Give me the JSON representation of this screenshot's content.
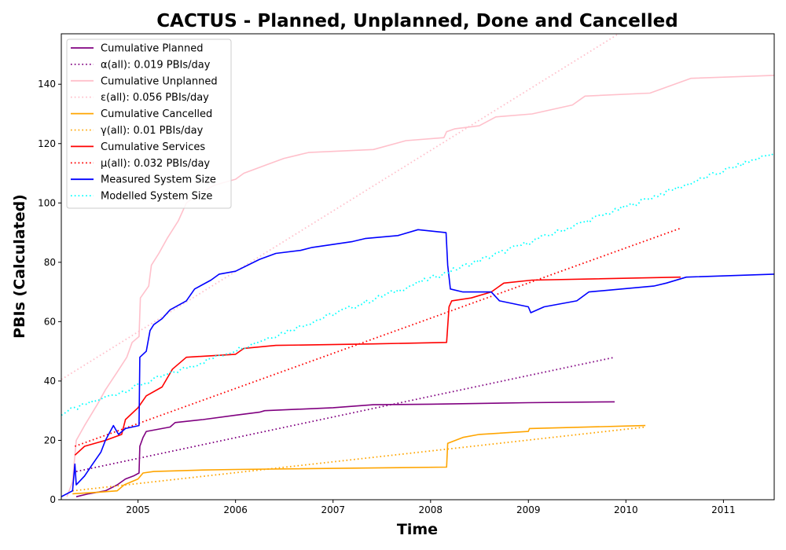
{
  "chart_data": {
    "type": "line",
    "title": "CACTUS - Planned, Unplanned, Done  and Cancelled",
    "xlabel": "Time",
    "ylabel": "PBIs (Calculated)",
    "xlim": [
      "2004-03-20",
      "2011-07-10"
    ],
    "ylim": [
      0,
      157
    ],
    "x_ticks": [
      "2005",
      "2006",
      "2007",
      "2008",
      "2009",
      "2010",
      "2011"
    ],
    "y_ticks": [
      0,
      20,
      40,
      60,
      80,
      100,
      120,
      140
    ],
    "grid": false,
    "legend_position": "upper-left",
    "series": [
      {
        "name": "Cumulative Planned",
        "color": "#800080",
        "style": "solid",
        "points": [
          [
            "2004-05-15",
            1
          ],
          [
            "2004-07-01",
            2
          ],
          [
            "2004-09-01",
            3
          ],
          [
            "2004-10-15",
            5
          ],
          [
            "2004-11-15",
            7
          ],
          [
            "2004-12-15",
            8
          ],
          [
            "2005-01-05",
            9
          ],
          [
            "2005-01-08",
            18
          ],
          [
            "2005-01-20",
            21
          ],
          [
            "2005-02-01",
            23
          ],
          [
            "2005-04-01",
            24
          ],
          [
            "2005-05-01",
            24.5
          ],
          [
            "2005-05-20",
            26
          ],
          [
            "2005-09-01",
            27
          ],
          [
            "2006-01-01",
            28.5
          ],
          [
            "2006-04-01",
            29.5
          ],
          [
            "2006-04-20",
            30
          ],
          [
            "2007-01-01",
            31
          ],
          [
            "2007-06-01",
            32
          ],
          [
            "2008-01-01",
            32.2
          ],
          [
            "2009-01-01",
            32.7
          ],
          [
            "2009-11-20",
            33
          ]
        ]
      },
      {
        "name": "α(all): 0.019 PBIs/day",
        "color": "#800080",
        "style": "dotted",
        "points": [
          [
            "2004-05-15",
            9.5
          ],
          [
            "2009-11-20",
            48
          ]
        ]
      },
      {
        "name": "Cumulative Unplanned",
        "color": "#ffc0cb",
        "style": "solid",
        "points": [
          [
            "2004-04-10",
            1
          ],
          [
            "2004-05-01",
            6
          ],
          [
            "2004-05-15",
            20
          ],
          [
            "2004-06-15",
            25
          ],
          [
            "2004-08-01",
            32
          ],
          [
            "2004-09-01",
            37
          ],
          [
            "2004-10-15",
            43
          ],
          [
            "2004-11-20",
            48
          ],
          [
            "2004-12-10",
            53
          ],
          [
            "2005-01-05",
            55
          ],
          [
            "2005-01-10",
            68
          ],
          [
            "2005-02-10",
            72
          ],
          [
            "2005-02-20",
            79
          ],
          [
            "2005-03-20",
            83
          ],
          [
            "2005-04-20",
            88
          ],
          [
            "2005-06-01",
            94
          ],
          [
            "2005-07-01",
            100
          ],
          [
            "2005-08-15",
            103
          ],
          [
            "2005-10-15",
            106
          ],
          [
            "2006-01-01",
            108
          ],
          [
            "2006-02-01",
            110
          ],
          [
            "2006-05-01",
            113
          ],
          [
            "2006-07-01",
            115
          ],
          [
            "2006-10-01",
            117
          ],
          [
            "2007-06-01",
            118
          ],
          [
            "2007-10-01",
            121
          ],
          [
            "2008-02-20",
            122
          ],
          [
            "2008-03-01",
            124
          ],
          [
            "2008-04-01",
            125
          ],
          [
            "2008-07-01",
            126
          ],
          [
            "2008-09-01",
            129
          ],
          [
            "2009-01-15",
            130
          ],
          [
            "2009-06-15",
            133
          ],
          [
            "2009-08-01",
            136
          ],
          [
            "2010-04-01",
            137
          ],
          [
            "2010-06-01",
            139
          ],
          [
            "2010-09-01",
            142
          ],
          [
            "2011-07-10",
            143
          ]
        ]
      },
      {
        "name": "ε(all): 0.056 PBIs/day",
        "color": "#ffc0cb",
        "style": "dotted",
        "points": [
          [
            "2004-03-20",
            40.5
          ],
          [
            "2009-12-05",
            157
          ]
        ]
      },
      {
        "name": "Cumulative Cancelled",
        "color": "#ffa500",
        "style": "solid",
        "points": [
          [
            "2004-05-01",
            2
          ],
          [
            "2004-08-01",
            2.5
          ],
          [
            "2004-10-15",
            3
          ],
          [
            "2004-11-10",
            5
          ],
          [
            "2005-01-01",
            7
          ],
          [
            "2005-01-20",
            9
          ],
          [
            "2005-03-01",
            9.5
          ],
          [
            "2005-09-01",
            10
          ],
          [
            "2006-01-01",
            10.2
          ],
          [
            "2008-03-01",
            11
          ],
          [
            "2008-03-05",
            19
          ],
          [
            "2008-05-01",
            21
          ],
          [
            "2008-07-01",
            22
          ],
          [
            "2009-01-01",
            23
          ],
          [
            "2009-01-05",
            24
          ],
          [
            "2010-03-15",
            25
          ]
        ]
      },
      {
        "name": "γ(all): 0.01 PBIs/day",
        "color": "#ffa500",
        "style": "dotted",
        "points": [
          [
            "2004-05-01",
            3
          ],
          [
            "2010-03-15",
            24.5
          ]
        ]
      },
      {
        "name": "Cumulative Services",
        "color": "#ff0000",
        "style": "solid",
        "points": [
          [
            "2004-05-10",
            15
          ],
          [
            "2004-06-15",
            18
          ],
          [
            "2004-09-01",
            20
          ],
          [
            "2004-11-01",
            22
          ],
          [
            "2004-11-15",
            27
          ],
          [
            "2005-01-01",
            31
          ],
          [
            "2005-02-01",
            35
          ],
          [
            "2005-04-01",
            38
          ],
          [
            "2005-05-10",
            44
          ],
          [
            "2005-07-01",
            48
          ],
          [
            "2006-01-01",
            49
          ],
          [
            "2006-02-01",
            51
          ],
          [
            "2006-06-01",
            52
          ],
          [
            "2007-06-01",
            52.5
          ],
          [
            "2008-03-01",
            53
          ],
          [
            "2008-03-10",
            65
          ],
          [
            "2008-03-20",
            67
          ],
          [
            "2008-06-01",
            68
          ],
          [
            "2008-08-15",
            70
          ],
          [
            "2008-10-01",
            73
          ],
          [
            "2009-01-15",
            74
          ],
          [
            "2010-07-25",
            75
          ]
        ]
      },
      {
        "name": "μ(all): 0.032 PBIs/day",
        "color": "#ff0000",
        "style": "dotted",
        "points": [
          [
            "2004-05-10",
            18
          ],
          [
            "2010-07-25",
            91.5
          ]
        ]
      },
      {
        "name": "Measured System Size",
        "color": "#0000ff",
        "style": "solid",
        "points": [
          [
            "2004-03-20",
            1
          ],
          [
            "2004-04-10",
            2
          ],
          [
            "2004-05-01",
            3
          ],
          [
            "2004-05-10",
            12
          ],
          [
            "2004-05-15",
            5
          ],
          [
            "2004-06-15",
            8
          ],
          [
            "2004-07-15",
            12
          ],
          [
            "2004-08-15",
            16
          ],
          [
            "2004-09-01",
            20
          ],
          [
            "2004-10-01",
            25
          ],
          [
            "2004-10-20",
            22
          ],
          [
            "2004-11-15",
            24
          ],
          [
            "2005-01-05",
            25
          ],
          [
            "2005-01-08",
            48
          ],
          [
            "2005-02-01",
            50
          ],
          [
            "2005-02-15",
            57
          ],
          [
            "2005-03-01",
            59
          ],
          [
            "2005-04-01",
            61
          ],
          [
            "2005-05-01",
            64
          ],
          [
            "2005-07-01",
            67
          ],
          [
            "2005-08-01",
            71
          ],
          [
            "2005-10-01",
            74
          ],
          [
            "2005-11-01",
            76
          ],
          [
            "2006-01-01",
            77
          ],
          [
            "2006-04-01",
            81
          ],
          [
            "2006-06-01",
            83
          ],
          [
            "2006-09-01",
            84
          ],
          [
            "2006-10-15",
            85
          ],
          [
            "2007-03-15",
            87
          ],
          [
            "2007-05-01",
            88
          ],
          [
            "2007-09-01",
            89
          ],
          [
            "2007-11-15",
            91
          ],
          [
            "2008-02-28",
            90
          ],
          [
            "2008-03-05",
            79
          ],
          [
            "2008-03-15",
            71
          ],
          [
            "2008-05-01",
            70
          ],
          [
            "2008-08-15",
            70
          ],
          [
            "2008-09-15",
            67
          ],
          [
            "2009-01-01",
            65
          ],
          [
            "2009-01-10",
            63
          ],
          [
            "2009-03-01",
            65
          ],
          [
            "2009-07-01",
            67
          ],
          [
            "2009-08-15",
            70
          ],
          [
            "2010-04-15",
            72
          ],
          [
            "2010-06-01",
            73
          ],
          [
            "2010-08-15",
            75
          ],
          [
            "2011-07-10",
            76
          ]
        ]
      },
      {
        "name": "Modelled System Size",
        "color": "#00ffff",
        "style": "dotted",
        "points": [
          [
            "2004-03-20",
            29
          ],
          [
            "2011-07-10",
            117
          ]
        ]
      }
    ]
  }
}
